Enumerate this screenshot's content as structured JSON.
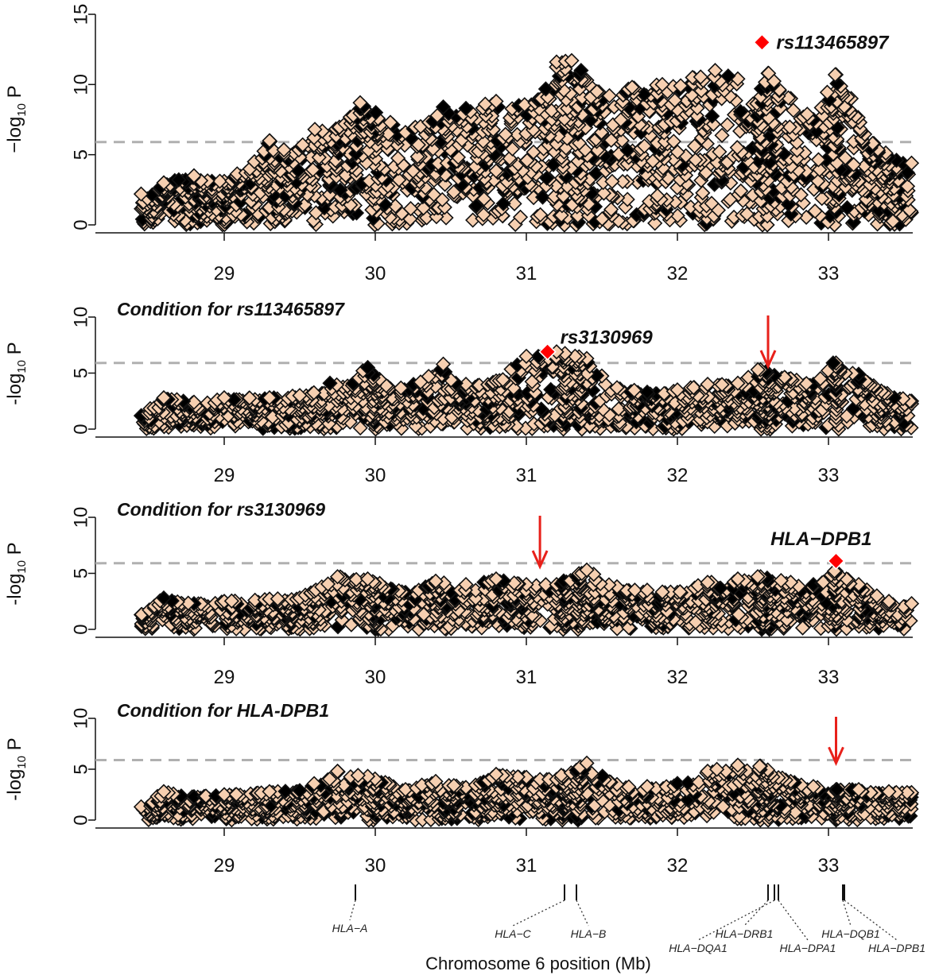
{
  "colors": {
    "point_fill": "#f6cfb0",
    "point_stroke": "#111111",
    "highlight": "#ff0000",
    "threshold": "#b0b0b0",
    "arrow": "#e8201a"
  },
  "xlabel": "Chromosome 6 position (Mb)",
  "chart_data": [
    {
      "type": "scatter",
      "ylabel": "−log10 P",
      "ylabel_main": "−log",
      "ylabel_sub": "10",
      "ylabel_end": " P",
      "title": "",
      "x_ticks": [
        "29",
        "30",
        "31",
        "32",
        "33"
      ],
      "xlim": [
        28.4,
        33.6
      ],
      "ylim": [
        0,
        15
      ],
      "y_ticks": [
        "0",
        "5",
        "10",
        "15"
      ],
      "threshold": 5.9,
      "peak_snp": {
        "name": "rs113465897",
        "x": 32.56,
        "y": 13.0
      },
      "arrow": null,
      "envelope": [
        [
          28.45,
          2.2
        ],
        [
          28.6,
          3.0
        ],
        [
          28.8,
          3.5
        ],
        [
          29.0,
          3.1
        ],
        [
          29.2,
          4.5
        ],
        [
          29.3,
          6.0
        ],
        [
          29.45,
          5.0
        ],
        [
          29.6,
          6.8
        ],
        [
          29.8,
          7.2
        ],
        [
          29.9,
          8.7
        ],
        [
          30.1,
          7.3
        ],
        [
          30.3,
          7.0
        ],
        [
          30.45,
          8.4
        ],
        [
          30.6,
          8.3
        ],
        [
          30.8,
          8.8
        ],
        [
          30.95,
          8.5
        ],
        [
          31.1,
          9.0
        ],
        [
          31.2,
          11.6
        ],
        [
          31.3,
          11.7
        ],
        [
          31.4,
          10.3
        ],
        [
          31.55,
          9.2
        ],
        [
          31.7,
          9.8
        ],
        [
          31.9,
          10.0
        ],
        [
          32.1,
          10.5
        ],
        [
          32.25,
          11.0
        ],
        [
          32.4,
          10.4
        ],
        [
          32.5,
          8.6
        ],
        [
          32.6,
          10.8
        ],
        [
          32.75,
          9.0
        ],
        [
          32.9,
          7.5
        ],
        [
          33.05,
          10.7
        ],
        [
          33.15,
          9.0
        ],
        [
          33.3,
          5.8
        ],
        [
          33.45,
          4.6
        ],
        [
          33.55,
          4.4
        ]
      ]
    },
    {
      "type": "scatter",
      "ylabel": "-log10 P",
      "ylabel_main": "-log",
      "ylabel_sub": "10",
      "ylabel_end": " P",
      "title": "Condition for rs113465897",
      "x_ticks": [
        "29",
        "30",
        "31",
        "32",
        "33"
      ],
      "xlim": [
        28.4,
        33.6
      ],
      "ylim": [
        0,
        10
      ],
      "y_ticks": [
        "0",
        "5",
        "10"
      ],
      "threshold": 5.9,
      "peak_snp": {
        "name": "rs3130969",
        "x": 31.14,
        "y": 6.9
      },
      "arrow": {
        "x": 32.6
      },
      "envelope": [
        [
          28.45,
          1.2
        ],
        [
          28.6,
          2.8
        ],
        [
          28.8,
          2.4
        ],
        [
          29.0,
          2.8
        ],
        [
          29.3,
          2.8
        ],
        [
          29.5,
          3.0
        ],
        [
          29.7,
          4.1
        ],
        [
          29.95,
          5.5
        ],
        [
          30.1,
          3.6
        ],
        [
          30.3,
          4.2
        ],
        [
          30.45,
          5.8
        ],
        [
          30.6,
          4.0
        ],
        [
          30.8,
          4.3
        ],
        [
          31.0,
          6.5
        ],
        [
          31.2,
          6.9
        ],
        [
          31.4,
          6.3
        ],
        [
          31.6,
          3.7
        ],
        [
          31.8,
          3.3
        ],
        [
          32.0,
          3.5
        ],
        [
          32.2,
          4.0
        ],
        [
          32.4,
          4.1
        ],
        [
          32.55,
          5.3
        ],
        [
          32.75,
          4.5
        ],
        [
          32.9,
          4.0
        ],
        [
          33.05,
          5.9
        ],
        [
          33.2,
          4.9
        ],
        [
          33.35,
          3.4
        ],
        [
          33.55,
          2.5
        ]
      ]
    },
    {
      "type": "scatter",
      "ylabel": "-log10 P",
      "ylabel_main": "-log",
      "ylabel_sub": "10",
      "ylabel_end": " P",
      "title": "Condition for rs3130969",
      "x_ticks": [
        "29",
        "30",
        "31",
        "32",
        "33"
      ],
      "xlim": [
        28.4,
        33.6
      ],
      "ylim": [
        0,
        10
      ],
      "y_ticks": [
        "0",
        "5",
        "10"
      ],
      "threshold": 5.9,
      "peak_snp": {
        "name": "HLA−DPB1",
        "x": 33.05,
        "y": 6.1
      },
      "arrow": {
        "x": 31.09
      },
      "envelope": [
        [
          28.45,
          1.3
        ],
        [
          28.6,
          2.8
        ],
        [
          28.8,
          2.3
        ],
        [
          29.0,
          2.5
        ],
        [
          29.3,
          2.7
        ],
        [
          29.5,
          2.8
        ],
        [
          29.75,
          4.7
        ],
        [
          29.95,
          4.5
        ],
        [
          30.2,
          3.3
        ],
        [
          30.4,
          4.3
        ],
        [
          30.6,
          4.0
        ],
        [
          30.8,
          4.5
        ],
        [
          31.0,
          4.0
        ],
        [
          31.2,
          4.0
        ],
        [
          31.4,
          5.3
        ],
        [
          31.6,
          3.8
        ],
        [
          31.8,
          3.5
        ],
        [
          32.0,
          3.3
        ],
        [
          32.2,
          4.2
        ],
        [
          32.4,
          4.5
        ],
        [
          32.55,
          4.7
        ],
        [
          32.75,
          4.2
        ],
        [
          32.9,
          4.0
        ],
        [
          33.05,
          5.2
        ],
        [
          33.2,
          4.0
        ],
        [
          33.4,
          2.5
        ],
        [
          33.55,
          2.3
        ]
      ]
    },
    {
      "type": "scatter",
      "ylabel": "-log10 P",
      "ylabel_main": "-log",
      "ylabel_sub": "10",
      "ylabel_end": " P",
      "title": "Condition for HLA-DPB1",
      "x_ticks": [
        "29",
        "30",
        "31",
        "32",
        "33"
      ],
      "xlim": [
        28.4,
        33.6
      ],
      "ylim": [
        0,
        10
      ],
      "y_ticks": [
        "0",
        "5",
        "10"
      ],
      "threshold": 5.9,
      "peak_snp": null,
      "arrow": {
        "x": 33.05
      },
      "envelope": [
        [
          28.45,
          1.3
        ],
        [
          28.6,
          2.8
        ],
        [
          28.8,
          2.3
        ],
        [
          29.0,
          2.5
        ],
        [
          29.3,
          2.8
        ],
        [
          29.5,
          2.9
        ],
        [
          29.75,
          4.8
        ],
        [
          29.95,
          4.3
        ],
        [
          30.2,
          3.0
        ],
        [
          30.4,
          3.8
        ],
        [
          30.6,
          3.2
        ],
        [
          30.8,
          4.5
        ],
        [
          31.0,
          4.2
        ],
        [
          31.2,
          4.0
        ],
        [
          31.4,
          5.6
        ],
        [
          31.6,
          3.5
        ],
        [
          31.8,
          3.3
        ],
        [
          32.0,
          3.6
        ],
        [
          32.2,
          4.8
        ],
        [
          32.4,
          5.4
        ],
        [
          32.55,
          5.3
        ],
        [
          32.75,
          3.8
        ],
        [
          32.9,
          3.3
        ],
        [
          33.05,
          3.0
        ],
        [
          33.2,
          3.0
        ],
        [
          33.4,
          2.8
        ],
        [
          33.55,
          2.7
        ]
      ]
    }
  ],
  "genes": [
    {
      "name": "HLA−A",
      "x": 29.91
    },
    {
      "name": "HLA−C",
      "x": 31.24
    },
    {
      "name": "HLA−B",
      "x": 31.32
    },
    {
      "name": "HLA−DRB1",
      "x": 32.55
    },
    {
      "name": "HLA−DQA1",
      "x": 32.61
    },
    {
      "name": "HLA−DPA1",
      "x": 33.03
    },
    {
      "name": "HLA−DQB1",
      "x": 32.63
    },
    {
      "name": "HLA−DPB1",
      "x": 33.05
    }
  ]
}
